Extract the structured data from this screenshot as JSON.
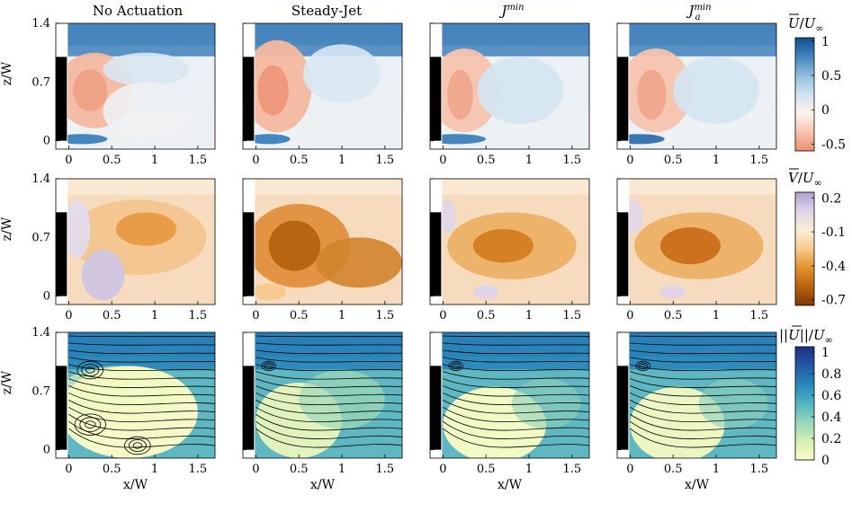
{
  "figure": {
    "column_titles": [
      "No Actuation",
      "Steady-Jet",
      "J^min",
      "J_a^min"
    ],
    "xlabel": "x/W",
    "ylabel": "z/W",
    "x_ticks": [
      0,
      0.5,
      1,
      1.5
    ],
    "x_tick_labels": [
      "0",
      "0.5",
      "1",
      "1.5"
    ],
    "y_ticks": [
      0,
      0.7,
      1.4
    ],
    "y_tick_labels": [
      "0",
      "0.7",
      "1.4"
    ],
    "xlim": [
      -0.15,
      1.7
    ],
    "ylim": [
      -0.1,
      1.4
    ]
  },
  "colorbars": [
    {
      "label": "U/U∞",
      "ticks": [
        "1",
        "0.5",
        "0",
        "-0.5"
      ],
      "tick_values": [
        1,
        0.5,
        0,
        -0.5
      ],
      "range": [
        -0.6,
        1.05
      ],
      "colors": [
        "#ef8e6e",
        "#f7c4b0",
        "#faf2ee",
        "#d2e3f0",
        "#8fbedc",
        "#4386bf",
        "#0f4d8c"
      ]
    },
    {
      "label": "V/U∞",
      "ticks": [
        "0.2",
        "-0.1",
        "-0.4",
        "-0.7"
      ],
      "tick_values": [
        0.2,
        -0.1,
        -0.4,
        -0.7
      ],
      "range": [
        -0.75,
        0.25
      ],
      "colors": [
        "#7c3a0a",
        "#b9620f",
        "#e2932f",
        "#f6c98b",
        "#fbeed8",
        "#ded6ea",
        "#aba1cf"
      ]
    },
    {
      "label": "||U||/U∞",
      "ticks": [
        "1",
        "0.8",
        "0.6",
        "0.4",
        "0.2",
        "0"
      ],
      "tick_values": [
        1,
        0.8,
        0.6,
        0.4,
        0.2,
        0
      ],
      "range": [
        0,
        1.05
      ],
      "colors": [
        "#fbfcc8",
        "#d6efb3",
        "#97d5b9",
        "#4eb4c1",
        "#2a86ba",
        "#2258a5",
        "#1f2d84"
      ]
    }
  ],
  "chart_data": {
    "type": "heatmap",
    "description_rows": [
      "U/U∞",
      "V/U∞",
      "||U||/U∞ with streamlines"
    ],
    "columns": [
      "No Actuation",
      "Steady-Jet",
      "J^min",
      "J_a^min"
    ],
    "x_range": [
      -0.15,
      1.7
    ],
    "z_range": [
      -0.1,
      1.4
    ],
    "U_range": [
      -0.5,
      1
    ],
    "V_range": [
      -0.7,
      0.2
    ],
    "speed_range": [
      0,
      1
    ]
  }
}
